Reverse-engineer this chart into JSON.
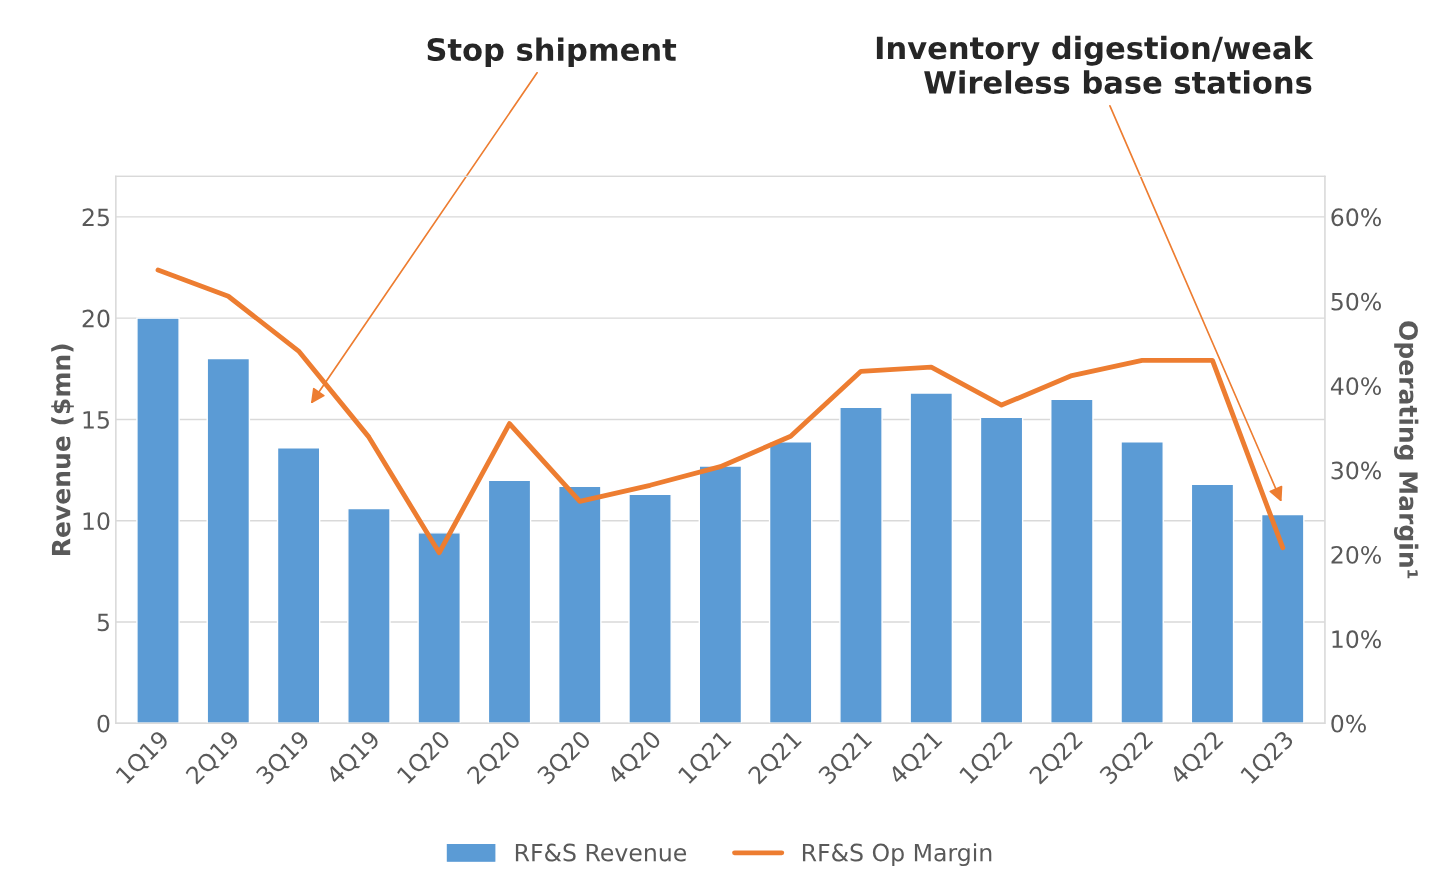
{
  "chart_data": {
    "type": "bar",
    "ylabel": "Revenue ($mn)",
    "y2label": "Operating Margin¹",
    "categories": [
      "1Q19",
      "2Q19",
      "3Q19",
      "4Q19",
      "1Q20",
      "2Q20",
      "3Q20",
      "4Q20",
      "1Q21",
      "2Q21",
      "3Q21",
      "4Q21",
      "1Q22",
      "2Q22",
      "3Q22",
      "4Q22",
      "1Q23"
    ],
    "series": [
      {
        "name": "RF&S Revenue",
        "color": "#5b9bd5",
        "values": [
          20.0,
          18.0,
          13.6,
          10.6,
          9.4,
          12.0,
          11.7,
          11.3,
          12.7,
          13.9,
          15.6,
          16.3,
          15.1,
          16.0,
          13.9,
          11.8,
          10.3
        ]
      },
      {
        "name": "RF&S Op Margin",
        "type": "line",
        "axis": "y2",
        "color": "#ed7d31",
        "values": [
          53.7,
          50.6,
          44.1,
          33.9,
          20.2,
          35.5,
          26.3,
          28.2,
          30.4,
          34.0,
          41.7,
          42.2,
          37.7,
          41.2,
          43.0,
          43.0,
          20.8
        ]
      }
    ],
    "ylim": [
      0,
      27
    ],
    "yticks": [
      0,
      5,
      10,
      15,
      20,
      25
    ],
    "y2lim": [
      0,
      64.8
    ],
    "y2ticks": [
      {
        "value": 0,
        "label": "0%"
      },
      {
        "value": 10,
        "label": "10%"
      },
      {
        "value": 20,
        "label": "20%"
      },
      {
        "value": 30,
        "label": "30%"
      },
      {
        "value": 40,
        "label": "40%"
      },
      {
        "value": 50,
        "label": "50%"
      },
      {
        "value": 60,
        "label": "60%"
      }
    ],
    "annotations": [
      "Stop shipment",
      "Inventory digestion/weak\nWireless base stations"
    ],
    "grid": "y",
    "legend": "bottom",
    "marker": "none",
    "line_style": "solid"
  }
}
